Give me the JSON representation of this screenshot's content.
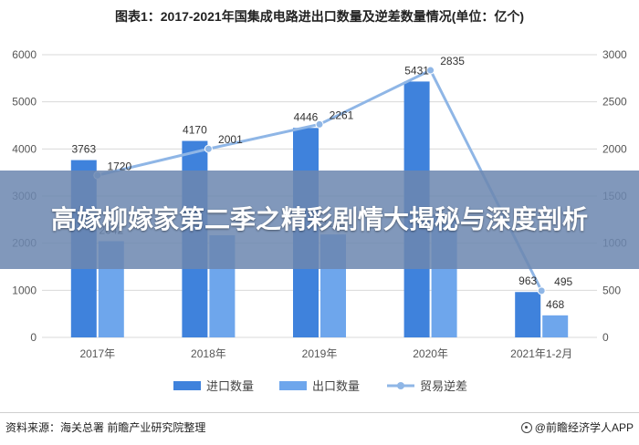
{
  "chart_data": {
    "type": "bar",
    "title": "图表1：2017-2021年国集成电路进出口数量及逆差数量情况(单位：亿个)",
    "categories": [
      "2017年",
      "2018年",
      "2019年",
      "2020年",
      "2021年1-2月"
    ],
    "series": [
      {
        "name": "进口数量",
        "kind": "bar",
        "axis": "left",
        "color": "#3f82dc",
        "values": [
          3763,
          4170,
          4446,
          5431,
          963
        ]
      },
      {
        "name": "出口数量",
        "kind": "bar",
        "axis": "left",
        "color": "#6ea6ec",
        "values": [
          2042,
          2169,
          2185,
          2598,
          468
        ]
      },
      {
        "name": "贸易逆差",
        "kind": "line",
        "axis": "right",
        "color": "#8fb6e6",
        "values": [
          1720,
          2001,
          2261,
          2835,
          495
        ]
      }
    ],
    "data_labels": {
      "进口数量": [
        "3763",
        "4170",
        "4446",
        "5431",
        "963"
      ],
      "出口数量": [
        "2042",
        "",
        "2185",
        "",
        "468"
      ],
      "贸易逆差": [
        "1720",
        "2001",
        "2261",
        "2835",
        "495"
      ]
    },
    "left_ylim": [
      0,
      6000
    ],
    "left_ticks": [
      "0",
      "1000",
      "2000",
      "3000",
      "4000",
      "5000",
      "6000"
    ],
    "right_ylim": [
      0,
      3000
    ],
    "right_ticks": [
      "0",
      "500",
      "1000",
      "1500",
      "2000",
      "2500",
      "3000"
    ],
    "grid": true,
    "legend_position": "bottom"
  },
  "overlay": {
    "headline": "高嫁柳嫁家第二季之精彩剧情大揭秘与深度剖析"
  },
  "footer": {
    "source": "资料来源：海关总署 前瞻产业研究院整理",
    "brand": "@前瞻经济学人APP",
    "brand_icon": "eye-icon"
  },
  "colors": {
    "overlay_bg": "#6c87b0",
    "grid": "#d9d9d9"
  }
}
